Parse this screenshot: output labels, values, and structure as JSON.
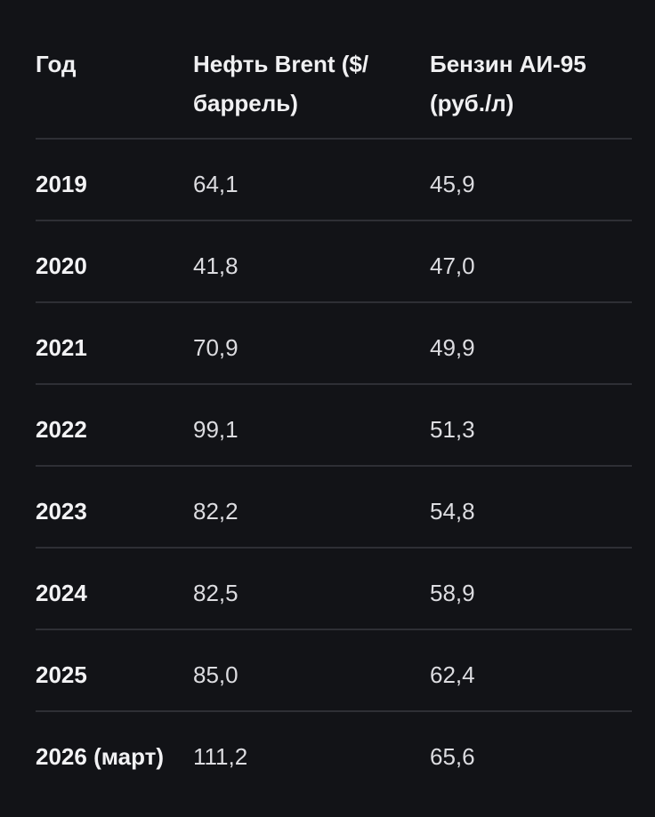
{
  "table": {
    "headers": [
      "Год",
      "Нефть Brent ($/ баррель)",
      "Бензин АИ-95 (руб./л)"
    ],
    "rows": [
      [
        "2019",
        "64,1",
        "45,9"
      ],
      [
        "2020",
        "41,8",
        "47,0"
      ],
      [
        "2021",
        "70,9",
        "49,9"
      ],
      [
        "2022",
        "99,1",
        "51,3"
      ],
      [
        "2023",
        "82,2",
        "54,8"
      ],
      [
        "2024",
        "82,5",
        "58,9"
      ],
      [
        "2025",
        "85,0",
        "62,4"
      ],
      [
        "2026 (март)",
        "111,2",
        "65,6"
      ]
    ]
  },
  "colors": {
    "background": "#121317",
    "text": "#e9e9ec",
    "divider": "#2e2f35"
  }
}
